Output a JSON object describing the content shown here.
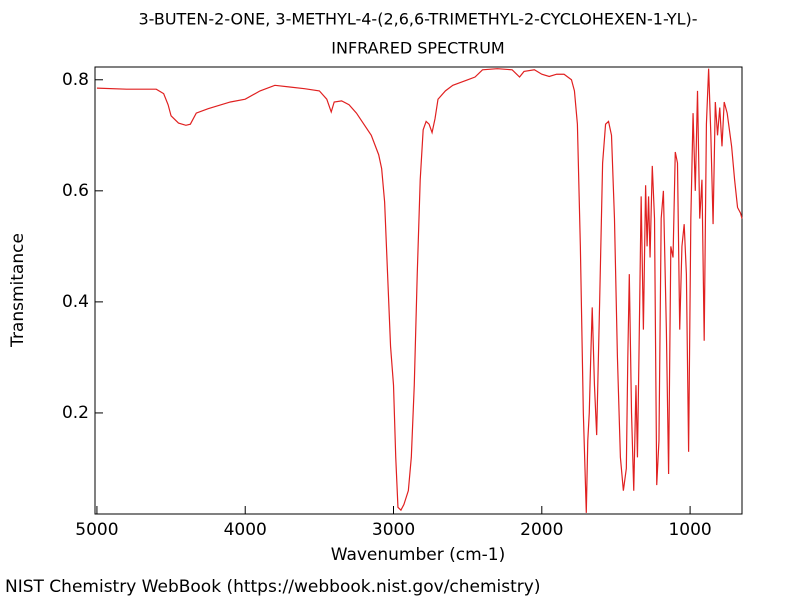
{
  "chart_data": {
    "type": "line",
    "title": "3-BUTEN-2-ONE, 3-METHYL-4-(2,6,6-TRIMETHYL-2-CYCLOHEXEN-1-YL)-",
    "subtitle": "INFRARED SPECTRUM",
    "x_label": "Wavenumber (cm-1)",
    "y_label": "Transmitance",
    "source": "NIST Chemistry WebBook (https://webbook.nist.gov/chemistry)",
    "xlim": [
      5013,
      650
    ],
    "ylim": [
      0.018,
      0.823
    ],
    "xticks": [
      5000,
      4000,
      3000,
      2000,
      1000
    ],
    "yticks": [
      0.2,
      0.4,
      0.6,
      0.8
    ],
    "series": [
      {
        "color": "#e02020",
        "x": [
          5000,
          4800,
          4600,
          4550,
          4520,
          4500,
          4450,
          4400,
          4370,
          4330,
          4250,
          4200,
          4100,
          4000,
          3900,
          3800,
          3700,
          3600,
          3500,
          3450,
          3420,
          3400,
          3350,
          3300,
          3250,
          3200,
          3150,
          3100,
          3080,
          3060,
          3040,
          3020,
          3000,
          2985,
          2970,
          2950,
          2930,
          2900,
          2880,
          2860,
          2840,
          2820,
          2800,
          2780,
          2760,
          2740,
          2720,
          2700,
          2650,
          2600,
          2550,
          2500,
          2450,
          2400,
          2300,
          2200,
          2150,
          2120,
          2050,
          2000,
          1950,
          1900,
          1850,
          1800,
          1780,
          1760,
          1740,
          1720,
          1700,
          1690,
          1680,
          1670,
          1660,
          1645,
          1630,
          1610,
          1590,
          1570,
          1550,
          1530,
          1510,
          1490,
          1470,
          1450,
          1430,
          1420,
          1410,
          1395,
          1380,
          1365,
          1355,
          1345,
          1330,
          1315,
          1300,
          1290,
          1280,
          1270,
          1255,
          1240,
          1225,
          1210,
          1195,
          1180,
          1160,
          1145,
          1130,
          1115,
          1100,
          1085,
          1070,
          1055,
          1040,
          1025,
          1010,
          995,
          980,
          965,
          950,
          935,
          920,
          905,
          890,
          875,
          860,
          845,
          830,
          815,
          800,
          785,
          770,
          750,
          720,
          700,
          680,
          660,
          650
        ],
        "values": [
          0.785,
          0.783,
          0.783,
          0.775,
          0.755,
          0.735,
          0.722,
          0.718,
          0.72,
          0.74,
          0.748,
          0.752,
          0.76,
          0.765,
          0.78,
          0.79,
          0.787,
          0.784,
          0.78,
          0.765,
          0.742,
          0.76,
          0.762,
          0.755,
          0.74,
          0.72,
          0.7,
          0.665,
          0.64,
          0.58,
          0.45,
          0.32,
          0.25,
          0.12,
          0.03,
          0.025,
          0.035,
          0.06,
          0.12,
          0.25,
          0.45,
          0.62,
          0.71,
          0.725,
          0.72,
          0.705,
          0.73,
          0.765,
          0.78,
          0.79,
          0.795,
          0.8,
          0.805,
          0.818,
          0.82,
          0.818,
          0.805,
          0.815,
          0.818,
          0.81,
          0.806,
          0.81,
          0.81,
          0.8,
          0.78,
          0.72,
          0.5,
          0.2,
          0.02,
          0.15,
          0.2,
          0.3,
          0.39,
          0.25,
          0.16,
          0.4,
          0.65,
          0.72,
          0.725,
          0.7,
          0.55,
          0.3,
          0.12,
          0.06,
          0.1,
          0.3,
          0.45,
          0.2,
          0.06,
          0.25,
          0.12,
          0.3,
          0.59,
          0.35,
          0.61,
          0.5,
          0.59,
          0.48,
          0.645,
          0.55,
          0.07,
          0.15,
          0.55,
          0.6,
          0.35,
          0.09,
          0.5,
          0.48,
          0.67,
          0.65,
          0.35,
          0.5,
          0.54,
          0.45,
          0.13,
          0.55,
          0.74,
          0.6,
          0.78,
          0.55,
          0.62,
          0.33,
          0.72,
          0.82,
          0.7,
          0.54,
          0.76,
          0.7,
          0.75,
          0.68,
          0.76,
          0.74,
          0.68,
          0.62,
          0.57,
          0.56,
          0.55
        ]
      }
    ]
  }
}
